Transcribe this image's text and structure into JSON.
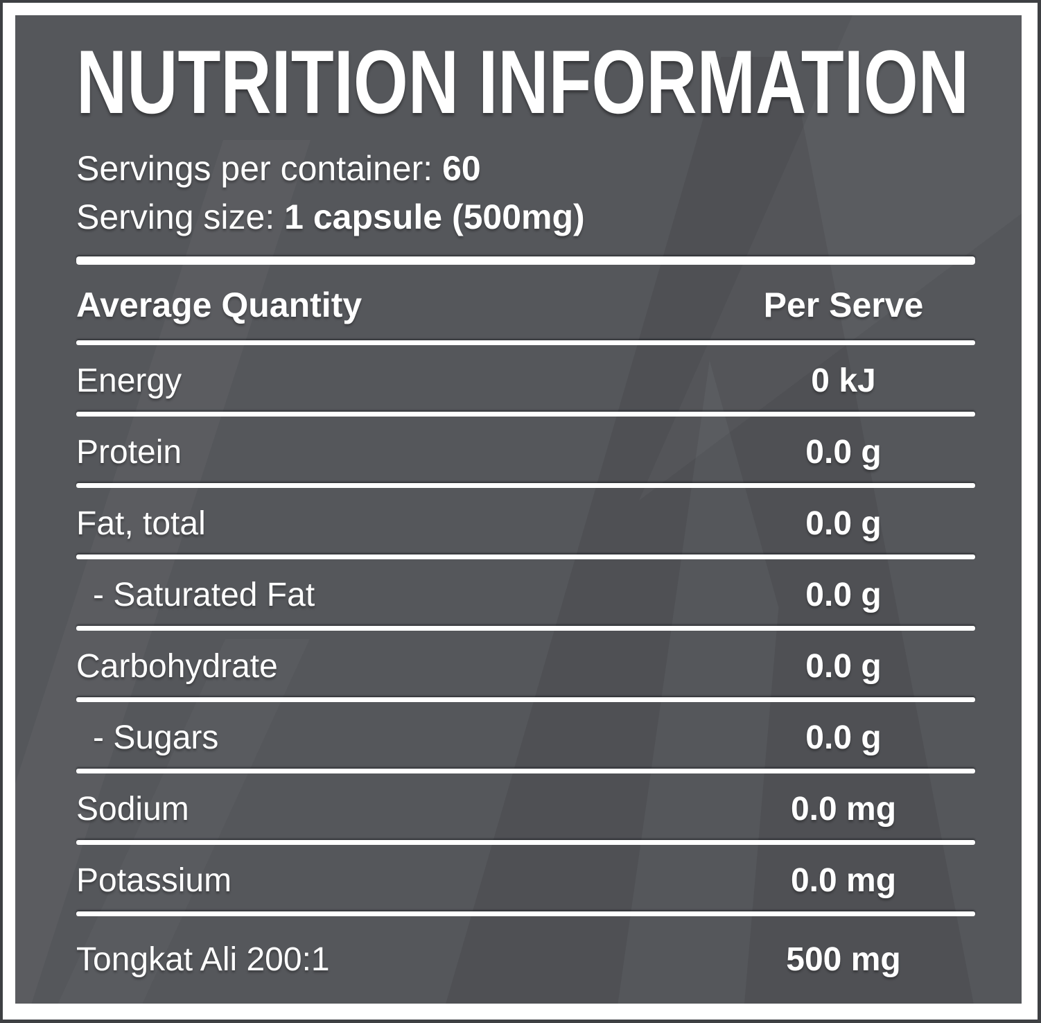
{
  "label": {
    "title": "NUTRITION INFORMATION",
    "servings_per_container": {
      "label": "Servings per container:",
      "value": "60"
    },
    "serving_size": {
      "label": "Serving size:",
      "value": "1 capsule (500mg)"
    },
    "table": {
      "header": {
        "label_col": "Average Quantity",
        "value_col": "Per Serve"
      },
      "rows": [
        {
          "name": "Energy",
          "value": "0 kJ",
          "indent": false
        },
        {
          "name": "Protein",
          "value": "0.0 g",
          "indent": false
        },
        {
          "name": "Fat, total",
          "value": "0.0 g",
          "indent": false
        },
        {
          "name": "- Saturated Fat",
          "value": "0.0 g",
          "indent": true
        },
        {
          "name": "Carbohydrate",
          "value": "0.0 g",
          "indent": false
        },
        {
          "name": "- Sugars",
          "value": "0.0 g",
          "indent": true
        },
        {
          "name": "Sodium",
          "value": "0.0 mg",
          "indent": false
        },
        {
          "name": "Potassium",
          "value": "0.0 mg",
          "indent": false
        },
        {
          "name": "Tongkat Ali 200:1",
          "value": "500 mg",
          "indent": false
        }
      ]
    },
    "colors": {
      "panel_background": "#55575b",
      "outer_border": "#3e4043",
      "frame": "#ffffff",
      "text": "#ffffff"
    }
  }
}
